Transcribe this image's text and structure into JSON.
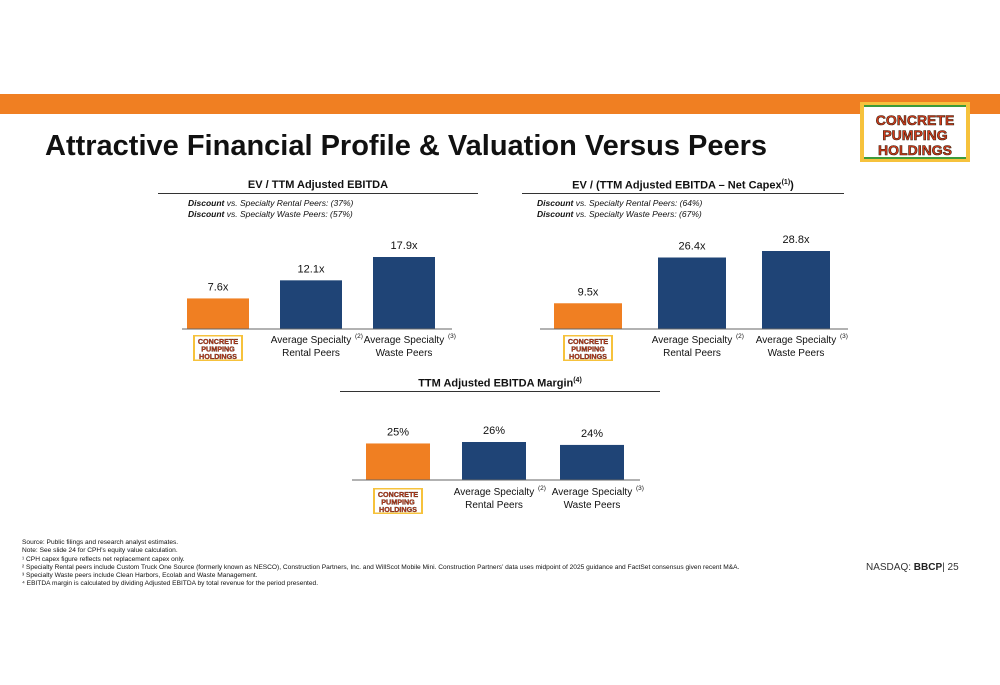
{
  "page": {
    "title": "Attractive Financial Profile & Valuation Versus Peers",
    "logo_text": [
      "CONCRETE",
      "PUMPING",
      "HOLDINGS"
    ],
    "ticker_prefix": "NASDAQ: ",
    "ticker": "BBCP",
    "page_number": "| 25"
  },
  "colors": {
    "orange": "#f07f22",
    "navy": "#1f4476",
    "logo_yellow": "#f6c23c",
    "logo_red": "#d63a1c",
    "logo_green": "#3c9b3a"
  },
  "panels": {
    "ev_ebitda": {
      "title": "EV / TTM Adjusted EBITDA",
      "discount_rental_label": "Discount",
      "discount_rental_text": " vs. Specialty Rental Peers: (37%)",
      "discount_waste_label": "Discount",
      "discount_waste_text": " vs. Specialty Waste Peers: (57%)"
    },
    "ev_capex": {
      "title_main": "EV / (TTM Adjusted EBITDA – Net Capex",
      "title_sup": "(1)",
      "title_end": ")",
      "discount_rental_label": "Discount",
      "discount_rental_text": " vs. Specialty Rental Peers: (64%)",
      "discount_waste_label": "Discount",
      "discount_waste_text": " vs. Specialty Waste Peers: (67%)"
    },
    "margin": {
      "title_main": "TTM Adjusted EBITDA Margin",
      "title_sup": "(4)"
    }
  },
  "chart_data": [
    {
      "type": "bar",
      "title": "EV / TTM Adjusted EBITDA",
      "categories": [
        "Concrete Pumping Holdings",
        "Average Specialty Rental Peers",
        "Average Specialty Waste Peers"
      ],
      "values": [
        7.6,
        12.1,
        17.9
      ],
      "data_labels": [
        "7.6x",
        "12.1x",
        "17.9x"
      ],
      "ylim": [
        0,
        20
      ]
    },
    {
      "type": "bar",
      "title": "EV / (TTM Adjusted EBITDA – Net Capex(1))",
      "categories": [
        "Concrete Pumping Holdings",
        "Average Specialty Rental Peers",
        "Average Specialty Waste Peers"
      ],
      "values": [
        9.5,
        26.4,
        28.8
      ],
      "data_labels": [
        "9.5x",
        "26.4x",
        "28.8x"
      ],
      "ylim": [
        0,
        32
      ]
    },
    {
      "type": "bar",
      "title": "TTM Adjusted EBITDA Margin(4)",
      "categories": [
        "Concrete Pumping Holdings",
        "Average Specialty Rental Peers",
        "Average Specialty Waste Peers"
      ],
      "values": [
        25,
        26,
        24
      ],
      "data_labels": [
        "25%",
        "26%",
        "24%"
      ],
      "ylim": [
        0,
        100
      ]
    }
  ],
  "category_labels": {
    "rental_line1": "Average Specialty",
    "rental_line2": "Rental Peers",
    "rental_note": "(2)",
    "waste_line1": "Average Specialty",
    "waste_line2": "Waste Peers",
    "waste_note": "(3)"
  },
  "footnotes": [
    "Source: Public filings and research analyst estimates.",
    "Note: See slide 24 for CPH’s equity value calculation.",
    "¹ CPH capex figure reflects net replacement capex only.",
    "² Specialty Rental peers include Custom Truck One Source (formerly known as NESCO), Construction Partners, Inc. and WillScot Mobile Mini. Construction Partners’ data uses midpoint of 2025 guidance and FactSet consensus given recent M&A.",
    "³ Specialty Waste peers include Clean Harbors, Ecolab and Waste Management.",
    "⁴ EBITDA margin is calculated by dividing Adjusted EBITDA by total revenue for the period presented."
  ]
}
